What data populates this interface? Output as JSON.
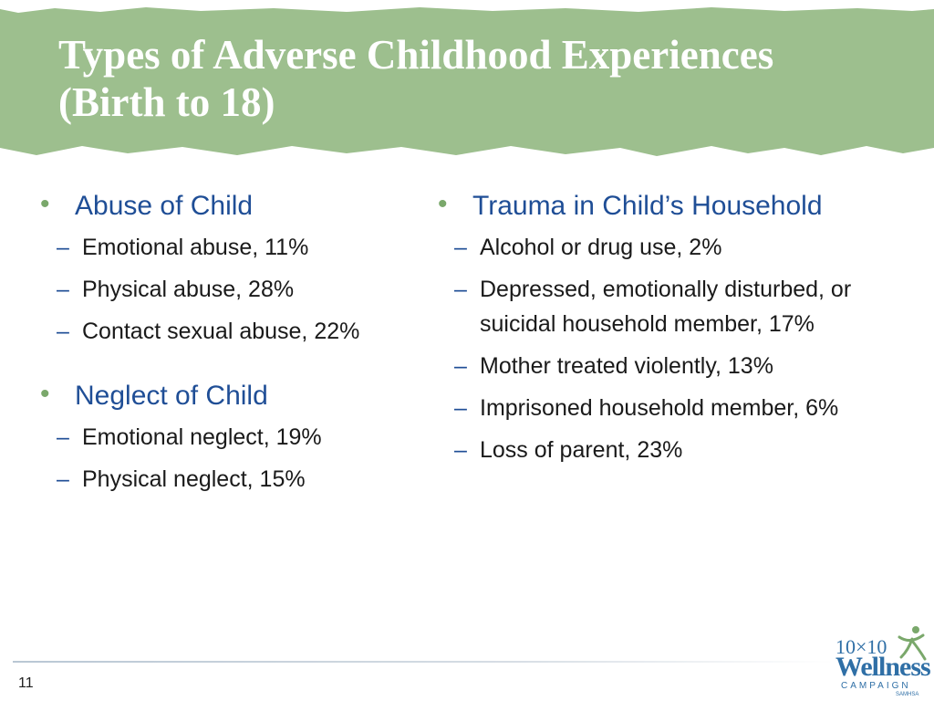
{
  "title": {
    "line1": "Types of Adverse Childhood Experiences",
    "line2": "(Birth to 18)"
  },
  "left_column": [
    {
      "heading": "Abuse of Child",
      "items": [
        "Emotional abuse, 11%",
        "Physical abuse, 28%",
        "Contact sexual abuse, 22%"
      ]
    },
    {
      "heading": "Neglect of Child",
      "items": [
        "Emotional neglect, 19%",
        "Physical neglect, 15%"
      ]
    }
  ],
  "right_column": [
    {
      "heading": "Trauma in Child’s Household",
      "items": [
        "Alcohol or drug use, 2%",
        "Depressed, emotionally disturbed, or suicidal household member, 17%",
        "Mother treated violently, 13%",
        "Imprisoned household member, 6%",
        "Loss of parent, 23%"
      ]
    }
  ],
  "footer": {
    "page_number": "11",
    "logo": {
      "line1": "10×10",
      "line2": "Wellness",
      "line3": "CAMPAIGN",
      "line4": "SAMHSA"
    }
  },
  "colors": {
    "title_band": "#9dbf8e",
    "heading_text": "#1f4e96",
    "bullet_dot": "#7aa86b"
  },
  "icons": {
    "bullet": "bullet-dot-icon",
    "sub_bullet": "dash-icon",
    "logo_figure": "stick-figure-icon"
  }
}
